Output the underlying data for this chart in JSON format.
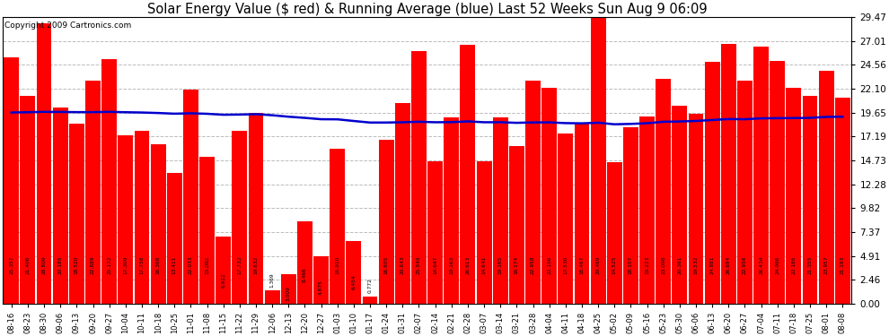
{
  "title": "Solar Energy Value ($ red) & Running Average (blue) Last 52 Weeks Sun Aug 9 06:09",
  "copyright": "Copyright 2009 Cartronics.com",
  "bar_color": "#ff0000",
  "line_color": "#0000cc",
  "background_color": "#ffffff",
  "plot_bg_color": "#ffffff",
  "grid_color": "#bbbbbb",
  "ylim": [
    0,
    29.47
  ],
  "yticks": [
    0.0,
    2.46,
    4.91,
    7.37,
    9.82,
    12.28,
    14.73,
    17.19,
    19.65,
    22.1,
    24.56,
    27.01,
    29.47
  ],
  "labels": [
    "08-16",
    "08-23",
    "08-30",
    "09-06",
    "09-13",
    "09-20",
    "09-27",
    "10-04",
    "10-11",
    "10-18",
    "10-25",
    "11-01",
    "11-08",
    "11-15",
    "11-22",
    "11-29",
    "12-06",
    "12-13",
    "12-20",
    "12-27",
    "01-03",
    "01-10",
    "01-17",
    "01-24",
    "01-31",
    "02-07",
    "02-14",
    "02-21",
    "02-28",
    "03-07",
    "03-14",
    "03-21",
    "03-28",
    "04-04",
    "04-11",
    "04-18",
    "04-25",
    "05-02",
    "05-09",
    "05-16",
    "05-23",
    "05-30",
    "06-06",
    "06-13",
    "06-20",
    "06-27",
    "07-04",
    "07-11",
    "07-18",
    "07-25",
    "08-01",
    "08-08"
  ],
  "values": [
    25.357,
    21.406,
    28.809,
    20.186,
    18.52,
    22.889,
    25.172,
    17.309,
    17.758,
    16.368,
    13.411,
    22.033,
    15.092,
    6.922,
    17.732,
    19.632,
    1.369,
    3.009,
    8.466,
    4.875,
    15.91,
    6.454,
    0.772,
    16.805,
    20.643,
    25.946,
    14.647,
    19.163,
    26.613,
    14.641,
    19.165,
    16.174,
    22.958,
    22.156,
    17.53,
    18.467,
    29.469,
    14.525,
    18.107,
    19.223,
    23.098,
    20.361,
    19.532,
    24.881,
    26.694,
    22.956,
    26.434,
    24.986,
    22.186,
    21.355,
    23.957,
    21.193
  ],
  "running_avg": [
    19.65,
    19.68,
    19.72,
    19.71,
    19.69,
    19.69,
    19.72,
    19.68,
    19.65,
    19.6,
    19.53,
    19.57,
    19.52,
    19.42,
    19.44,
    19.48,
    19.37,
    19.22,
    19.1,
    18.96,
    18.95,
    18.78,
    18.62,
    18.62,
    18.65,
    18.7,
    18.65,
    18.66,
    18.74,
    18.65,
    18.65,
    18.59,
    18.63,
    18.64,
    18.56,
    18.54,
    18.6,
    18.44,
    18.48,
    18.55,
    18.7,
    18.73,
    18.78,
    18.88,
    18.98,
    18.96,
    19.05,
    19.07,
    19.08,
    19.1,
    19.2,
    19.22
  ]
}
